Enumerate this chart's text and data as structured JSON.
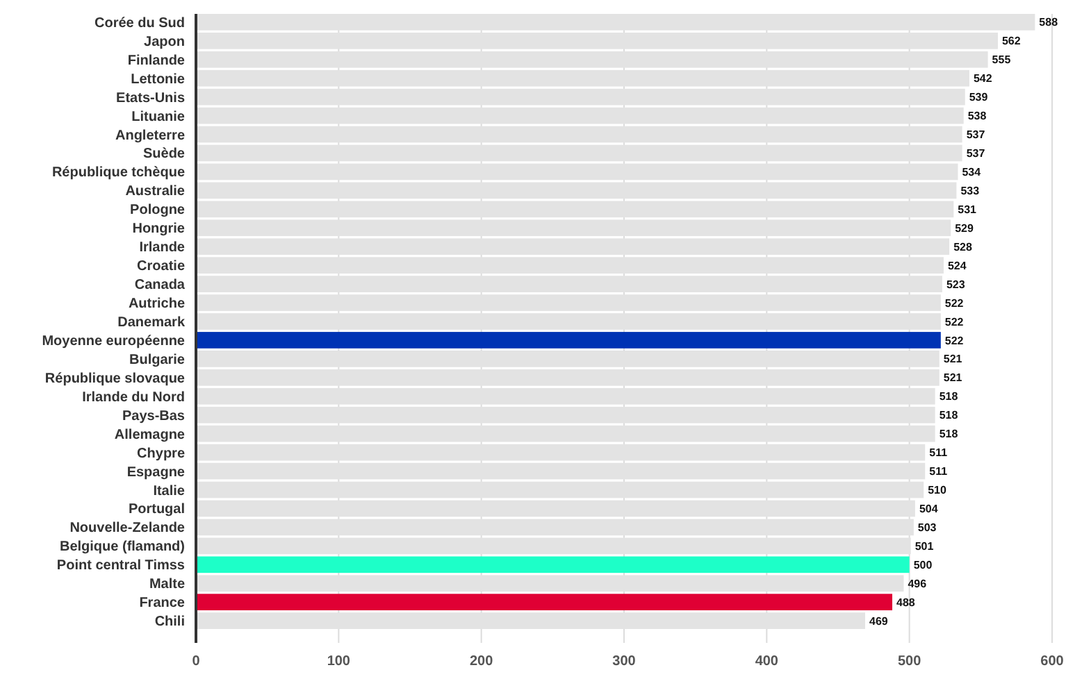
{
  "chart_data": {
    "type": "bar",
    "orientation": "horizontal",
    "categories": [
      "Corée du Sud",
      "Japon",
      "Finlande",
      "Lettonie",
      "Etats-Unis",
      "Lituanie",
      "Angleterre",
      "Suède",
      "République tchèque",
      "Australie",
      "Pologne",
      "Hongrie",
      "Irlande",
      "Croatie",
      "Canada",
      "Autriche",
      "Danemark",
      "Moyenne européenne",
      "Bulgarie",
      "République slovaque",
      "Irlande du Nord",
      "Pays-Bas",
      "Allemagne",
      "Chypre",
      "Espagne",
      "Italie",
      "Portugal",
      "Nouvelle-Zelande",
      "Belgique (flamand)",
      "Point central Timss",
      "Malte",
      "France",
      "Chili"
    ],
    "values": [
      588,
      562,
      555,
      542,
      539,
      538,
      537,
      537,
      534,
      533,
      531,
      529,
      528,
      524,
      523,
      522,
      522,
      522,
      521,
      521,
      518,
      518,
      518,
      511,
      511,
      510,
      504,
      503,
      501,
      500,
      496,
      488,
      469
    ],
    "colors": [
      "#e3e3e3",
      "#e3e3e3",
      "#e3e3e3",
      "#e3e3e3",
      "#e3e3e3",
      "#e3e3e3",
      "#e3e3e3",
      "#e3e3e3",
      "#e3e3e3",
      "#e3e3e3",
      "#e3e3e3",
      "#e3e3e3",
      "#e3e3e3",
      "#e3e3e3",
      "#e3e3e3",
      "#e3e3e3",
      "#e3e3e3",
      "#0033b4",
      "#e3e3e3",
      "#e3e3e3",
      "#e3e3e3",
      "#e3e3e3",
      "#e3e3e3",
      "#e3e3e3",
      "#e3e3e3",
      "#e3e3e3",
      "#e3e3e3",
      "#e3e3e3",
      "#e3e3e3",
      "#1dffc8",
      "#e3e3e3",
      "#e00034",
      "#e3e3e3"
    ],
    "xlim": [
      0,
      600
    ],
    "xticks": [
      0,
      100,
      200,
      300,
      400,
      500,
      600
    ],
    "grid": "x",
    "data_labels": true
  }
}
